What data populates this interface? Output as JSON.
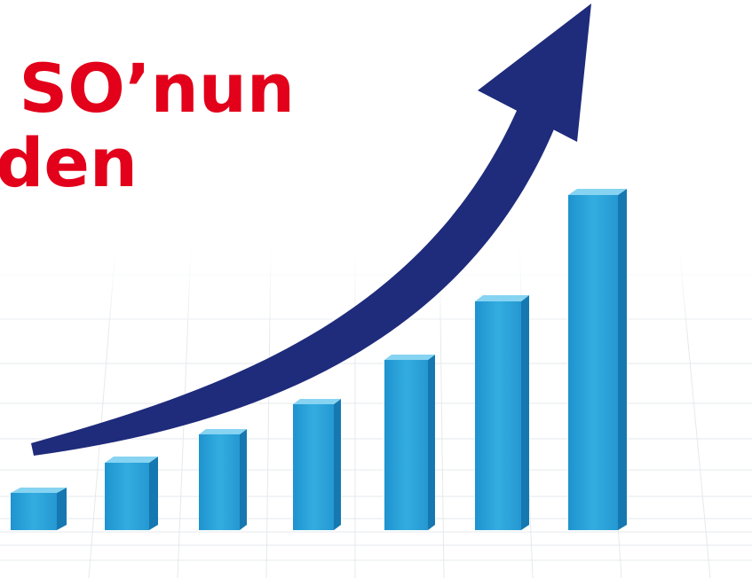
{
  "headline": {
    "lines": [
      "SO’nun",
      "den"
    ]
  }
}
